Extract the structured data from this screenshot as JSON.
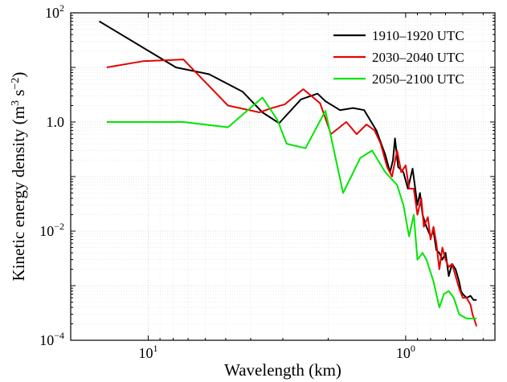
{
  "chart_data": {
    "type": "line",
    "xlabel": "Wavelength (km)",
    "ylabel": "Kinetic energy density (m",
    "ylabel_sup1": "3",
    "ylabel_mid": " s",
    "ylabel_sup2": "−2",
    "ylabel_end": ")",
    "x_scale": "log",
    "x_reversed": true,
    "y_scale": "log",
    "xlim": [
      20,
      0.45
    ],
    "ylim": [
      0.0001,
      100
    ],
    "grid": true,
    "legend_position": "top-right",
    "x_ticks": [
      {
        "value": 10,
        "base": "10",
        "exp": "1"
      },
      {
        "value": 1,
        "base": "10",
        "exp": "0"
      }
    ],
    "y_ticks": [
      {
        "value": 100,
        "label": "10",
        "exp": "2"
      },
      {
        "value": 1,
        "label": "10",
        "exp": "0",
        "plain": "1.0"
      },
      {
        "value": 0.01,
        "label": "10",
        "exp": "−2"
      },
      {
        "value": 0.0001,
        "label": "10",
        "exp": "−4"
      }
    ],
    "series": [
      {
        "name": "1910–1920 UTC",
        "color": "#000000",
        "points": [
          [
            15.5,
            70
          ],
          [
            7.8,
            10
          ],
          [
            5.8,
            7.5
          ],
          [
            4.3,
            3.6
          ],
          [
            3.6,
            1.5
          ],
          [
            3.1,
            0.95
          ],
          [
            2.55,
            2.6
          ],
          [
            2.2,
            3.3
          ],
          [
            2.05,
            2.4
          ],
          [
            1.8,
            1.65
          ],
          [
            1.6,
            1.8
          ],
          [
            1.45,
            1.65
          ],
          [
            1.3,
            0.7
          ],
          [
            1.2,
            0.25
          ],
          [
            1.15,
            0.12
          ],
          [
            1.12,
            0.2
          ],
          [
            1.1,
            0.5
          ],
          [
            1.07,
            0.15
          ],
          [
            1.02,
            0.12
          ],
          [
            0.98,
            0.06
          ],
          [
            0.94,
            0.14
          ],
          [
            0.9,
            0.03
          ],
          [
            0.88,
            0.05
          ],
          [
            0.86,
            0.02
          ],
          [
            0.83,
            0.012
          ],
          [
            0.8,
            0.008
          ],
          [
            0.78,
            0.01
          ],
          [
            0.76,
            0.0045
          ],
          [
            0.74,
            0.004
          ],
          [
            0.72,
            0.003
          ],
          [
            0.7,
            0.004
          ],
          [
            0.68,
            0.0015
          ],
          [
            0.66,
            0.0025
          ],
          [
            0.64,
            0.002
          ],
          [
            0.62,
            0.0012
          ],
          [
            0.61,
            0.0008
          ],
          [
            0.6,
            0.0007
          ],
          [
            0.58,
            0.0006
          ],
          [
            0.56,
            0.00065
          ],
          [
            0.545,
            0.00055
          ],
          [
            0.53,
            0.00055
          ]
        ]
      },
      {
        "name": "2030–2040 UTC",
        "color": "#e60000",
        "points": [
          [
            14.5,
            10
          ],
          [
            10.5,
            13
          ],
          [
            7.3,
            14
          ],
          [
            4.9,
            2
          ],
          [
            3.7,
            1.5
          ],
          [
            3.3,
            1.8
          ],
          [
            2.95,
            2.1
          ],
          [
            2.5,
            4
          ],
          [
            2.15,
            2.2
          ],
          [
            1.95,
            0.6
          ],
          [
            1.7,
            1
          ],
          [
            1.55,
            0.6
          ],
          [
            1.42,
            0.9
          ],
          [
            1.32,
            0.7
          ],
          [
            1.25,
            0.4
          ],
          [
            1.18,
            0.15
          ],
          [
            1.13,
            0.1
          ],
          [
            1.08,
            0.3
          ],
          [
            1.04,
            0.12
          ],
          [
            1,
            0.16
          ],
          [
            0.97,
            0.06
          ],
          [
            0.93,
            0.06
          ],
          [
            0.9,
            0.02
          ],
          [
            0.87,
            0.04
          ],
          [
            0.85,
            0.012
          ],
          [
            0.82,
            0.018
          ],
          [
            0.8,
            0.007
          ],
          [
            0.78,
            0.012
          ],
          [
            0.76,
            0.006
          ],
          [
            0.74,
            0.002
          ],
          [
            0.72,
            0.005
          ],
          [
            0.7,
            0.003
          ],
          [
            0.68,
            0.0022
          ],
          [
            0.66,
            0.0025
          ],
          [
            0.64,
            0.0015
          ],
          [
            0.62,
            0.0009
          ],
          [
            0.6,
            0.0006
          ],
          [
            0.58,
            0.0006
          ],
          [
            0.56,
            0.00045
          ],
          [
            0.55,
            0.0003
          ],
          [
            0.53,
            0.00018
          ]
        ]
      },
      {
        "name": "2050–2100 UTC",
        "color": "#00e600",
        "points": [
          [
            14.5,
            1
          ],
          [
            7.3,
            1
          ],
          [
            4.9,
            0.8
          ],
          [
            3.6,
            2.8
          ],
          [
            3.15,
            1.1
          ],
          [
            2.9,
            0.4
          ],
          [
            2.45,
            0.33
          ],
          [
            2.05,
            1.6
          ],
          [
            1.75,
            0.05
          ],
          [
            1.5,
            0.22
          ],
          [
            1.35,
            0.3
          ],
          [
            1.2,
            0.12
          ],
          [
            1.08,
            0.07
          ],
          [
            1.02,
            0.03
          ],
          [
            0.97,
            0.008
          ],
          [
            0.93,
            0.02
          ],
          [
            0.9,
            0.003
          ],
          [
            0.86,
            0.004
          ],
          [
            0.83,
            0.003
          ],
          [
            0.78,
            0.0012
          ],
          [
            0.74,
            0.0004
          ],
          [
            0.71,
            0.0007
          ],
          [
            0.68,
            0.0008
          ],
          [
            0.65,
            0.0006
          ],
          [
            0.62,
            0.0003
          ],
          [
            0.58,
            0.00025
          ],
          [
            0.53,
            0.00025
          ]
        ]
      }
    ]
  }
}
